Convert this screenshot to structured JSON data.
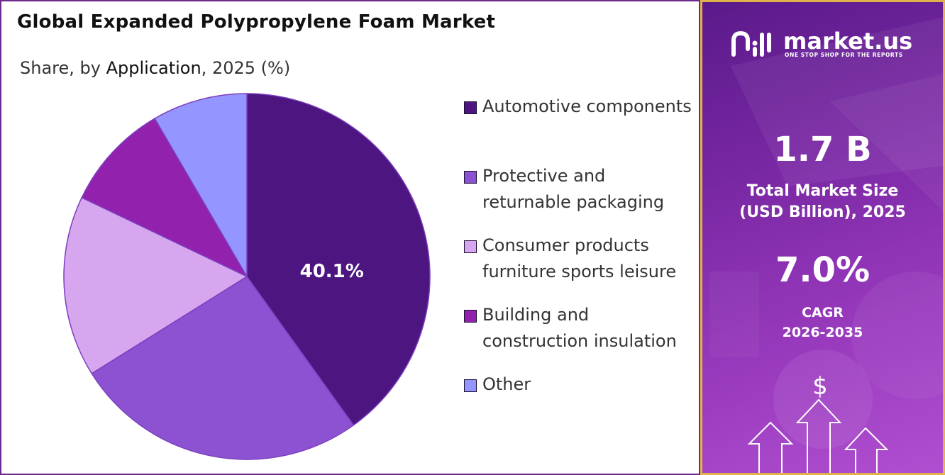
{
  "title": "Global Expanded Polypropylene Foam Market",
  "subtitle": {
    "prefix": "Share, by ",
    "emphasis": "Application",
    "suffix": ", 2025 (%)"
  },
  "chart_data": {
    "type": "pie",
    "title": "Global Expanded Polypropylene Foam Market",
    "subtitle": "Share, by Application, 2025 (%)",
    "categories": [
      "Automotive components",
      "Protective and returnable packaging",
      "Consumer products furniture sports leisure",
      "Building and construction insulation",
      "Other"
    ],
    "values": [
      40.1,
      26.0,
      16.0,
      9.5,
      8.4
    ],
    "colors": [
      "#4c1580",
      "#8c52d2",
      "#d6a6ee",
      "#9222ad",
      "#9595ff"
    ],
    "data_labels": [
      "40.1%",
      "",
      "",
      "",
      ""
    ],
    "legend_position": "right",
    "start_angle_deg": 0,
    "direction": "clockwise"
  },
  "legend": {
    "items": [
      {
        "label": "Automotive components",
        "color": "#4c1580"
      },
      {
        "label": "Protective and returnable packaging",
        "color": "#8c52d2"
      },
      {
        "label": "Consumer products furniture sports leisure",
        "color": "#d6a6ee"
      },
      {
        "label": "Building and construction insulation",
        "color": "#9222ad"
      },
      {
        "label": "Other",
        "color": "#9595ff"
      }
    ]
  },
  "sidebar": {
    "brand": "market.us",
    "tagline": "ONE STOP SHOP FOR THE REPORTS",
    "market_size_value": "1.7 B",
    "market_size_caption_line1": "Total Market Size",
    "market_size_caption_line2": "(USD Billion), 2025",
    "cagr_value": "7.0%",
    "cagr_caption_line1": "CAGR",
    "cagr_caption_line2": "2026-2035",
    "currency_symbol": "$",
    "accent_border": "#e2b24a"
  }
}
